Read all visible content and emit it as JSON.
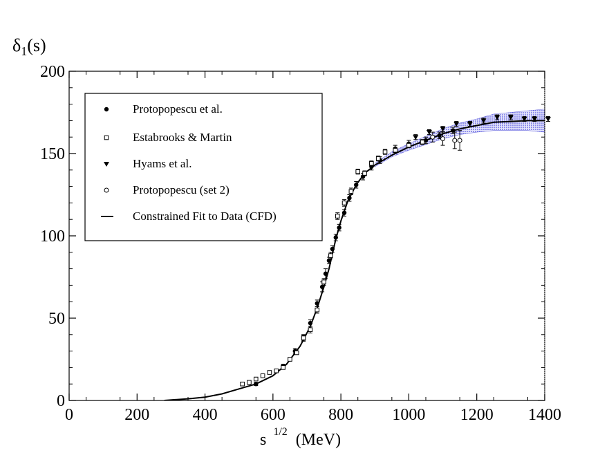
{
  "chart_data": {
    "type": "scatter",
    "ylabel": {
      "main": "δ",
      "sub": "1",
      "rest": "(s)"
    },
    "xlabel": {
      "main": "s",
      "sup": "1/2",
      "rest": "(MeV)"
    },
    "xlim": [
      0,
      1400
    ],
    "ylim": [
      0,
      200
    ],
    "x_ticks": [
      0,
      200,
      400,
      600,
      800,
      1000,
      1200,
      1400
    ],
    "y_ticks": [
      0,
      50,
      100,
      150,
      200
    ],
    "grid": false,
    "legend_position": "top-left",
    "series": [
      {
        "name": "Protopopescu et al.",
        "marker": "filled-circle",
        "points": [
          {
            "x": 550,
            "y": 10,
            "err": 1
          },
          {
            "x": 610,
            "y": 18,
            "err": 1
          },
          {
            "x": 630,
            "y": 21,
            "err": 1
          },
          {
            "x": 665,
            "y": 30,
            "err": 1.5
          },
          {
            "x": 690,
            "y": 38,
            "err": 2
          },
          {
            "x": 710,
            "y": 47,
            "err": 2
          },
          {
            "x": 730,
            "y": 59,
            "err": 2
          },
          {
            "x": 745,
            "y": 69,
            "err": 3
          },
          {
            "x": 755,
            "y": 77,
            "err": 3
          },
          {
            "x": 765,
            "y": 85,
            "err": 2
          },
          {
            "x": 775,
            "y": 92,
            "err": 2
          },
          {
            "x": 785,
            "y": 99,
            "err": 2
          },
          {
            "x": 795,
            "y": 105,
            "err": 2
          },
          {
            "x": 810,
            "y": 114,
            "err": 2
          },
          {
            "x": 825,
            "y": 123,
            "err": 2
          },
          {
            "x": 845,
            "y": 131,
            "err": 2
          },
          {
            "x": 865,
            "y": 136,
            "err": 2
          },
          {
            "x": 890,
            "y": 142,
            "err": 2
          },
          {
            "x": 915,
            "y": 146,
            "err": 2
          },
          {
            "x": 960,
            "y": 153,
            "err": 2
          },
          {
            "x": 1000,
            "y": 156,
            "err": 2
          },
          {
            "x": 1050,
            "y": 158,
            "err": 2
          },
          {
            "x": 1090,
            "y": 161,
            "err": 2
          },
          {
            "x": 1130,
            "y": 164,
            "err": 2
          }
        ]
      },
      {
        "name": "Estabrooks & Martin",
        "marker": "open-square",
        "points": [
          {
            "x": 510,
            "y": 10,
            "err": 1
          },
          {
            "x": 530,
            "y": 11,
            "err": 1
          },
          {
            "x": 550,
            "y": 13,
            "err": 1
          },
          {
            "x": 570,
            "y": 15,
            "err": 1
          },
          {
            "x": 590,
            "y": 17,
            "err": 1
          },
          {
            "x": 610,
            "y": 18,
            "err": 1
          },
          {
            "x": 630,
            "y": 20,
            "err": 1
          },
          {
            "x": 650,
            "y": 25,
            "err": 1
          },
          {
            "x": 670,
            "y": 29,
            "err": 1
          },
          {
            "x": 690,
            "y": 38,
            "err": 1.5
          },
          {
            "x": 710,
            "y": 43,
            "err": 2
          },
          {
            "x": 730,
            "y": 55,
            "err": 2
          },
          {
            "x": 750,
            "y": 72,
            "err": 2
          },
          {
            "x": 770,
            "y": 88,
            "err": 2
          },
          {
            "x": 790,
            "y": 112,
            "err": 2
          },
          {
            "x": 810,
            "y": 120,
            "err": 2
          },
          {
            "x": 830,
            "y": 127,
            "err": 2
          },
          {
            "x": 850,
            "y": 139,
            "err": 1.5
          },
          {
            "x": 870,
            "y": 138,
            "err": 1.5
          },
          {
            "x": 890,
            "y": 144,
            "err": 1.5
          },
          {
            "x": 910,
            "y": 147,
            "err": 1.5
          },
          {
            "x": 930,
            "y": 151,
            "err": 1.5
          },
          {
            "x": 960,
            "y": 152,
            "err": 1.5
          },
          {
            "x": 1000,
            "y": 155,
            "err": 1.5
          },
          {
            "x": 1040,
            "y": 157,
            "err": 1.5
          }
        ]
      },
      {
        "name": "Hyams et al.",
        "marker": "filled-triangle-down",
        "points": [
          {
            "x": 1020,
            "y": 160,
            "err": 1.5
          },
          {
            "x": 1060,
            "y": 163,
            "err": 1.5
          },
          {
            "x": 1100,
            "y": 165,
            "err": 1.5
          },
          {
            "x": 1140,
            "y": 168,
            "err": 1.5
          },
          {
            "x": 1180,
            "y": 168,
            "err": 1.5
          },
          {
            "x": 1220,
            "y": 170,
            "err": 1.5
          },
          {
            "x": 1260,
            "y": 172,
            "err": 1.5
          },
          {
            "x": 1300,
            "y": 172,
            "err": 1.5
          },
          {
            "x": 1340,
            "y": 171,
            "err": 1.5
          },
          {
            "x": 1370,
            "y": 171,
            "err": 1.5
          },
          {
            "x": 1410,
            "y": 171,
            "err": 1.5
          }
        ]
      },
      {
        "name": "Protopopescu (set 2)",
        "marker": "open-circle",
        "points": [
          {
            "x": 1070,
            "y": 160,
            "err": 3
          },
          {
            "x": 1100,
            "y": 159,
            "err": 4
          },
          {
            "x": 1135,
            "y": 158,
            "err": 5
          },
          {
            "x": 1150,
            "y": 158,
            "err": 6
          }
        ]
      },
      {
        "name": "Constrained Fit to Data (CFD)",
        "marker": "line",
        "curve": [
          {
            "x": 280,
            "y": 0
          },
          {
            "x": 350,
            "y": 1
          },
          {
            "x": 400,
            "y": 2
          },
          {
            "x": 450,
            "y": 4
          },
          {
            "x": 500,
            "y": 7
          },
          {
            "x": 550,
            "y": 10
          },
          {
            "x": 600,
            "y": 15
          },
          {
            "x": 640,
            "y": 22
          },
          {
            "x": 680,
            "y": 33
          },
          {
            "x": 710,
            "y": 45
          },
          {
            "x": 730,
            "y": 56
          },
          {
            "x": 750,
            "y": 69
          },
          {
            "x": 765,
            "y": 80
          },
          {
            "x": 775,
            "y": 89
          },
          {
            "x": 785,
            "y": 98
          },
          {
            "x": 800,
            "y": 109
          },
          {
            "x": 820,
            "y": 121
          },
          {
            "x": 845,
            "y": 131
          },
          {
            "x": 870,
            "y": 138
          },
          {
            "x": 900,
            "y": 143
          },
          {
            "x": 950,
            "y": 149
          },
          {
            "x": 1000,
            "y": 154
          },
          {
            "x": 1050,
            "y": 158
          },
          {
            "x": 1100,
            "y": 162
          },
          {
            "x": 1150,
            "y": 165
          },
          {
            "x": 1200,
            "y": 167
          },
          {
            "x": 1250,
            "y": 169
          },
          {
            "x": 1300,
            "y": 169.5
          },
          {
            "x": 1350,
            "y": 170
          },
          {
            "x": 1400,
            "y": 170
          }
        ],
        "band": [
          {
            "x": 900,
            "lo": 142,
            "hi": 144
          },
          {
            "x": 950,
            "lo": 148,
            "hi": 151
          },
          {
            "x": 1000,
            "lo": 152,
            "hi": 156
          },
          {
            "x": 1050,
            "lo": 155.5,
            "hi": 160.5
          },
          {
            "x": 1100,
            "lo": 159,
            "hi": 165
          },
          {
            "x": 1150,
            "lo": 161.5,
            "hi": 168.5
          },
          {
            "x": 1200,
            "lo": 163,
            "hi": 171
          },
          {
            "x": 1250,
            "lo": 164,
            "hi": 174
          },
          {
            "x": 1300,
            "lo": 164,
            "hi": 175
          },
          {
            "x": 1350,
            "lo": 164,
            "hi": 176
          },
          {
            "x": 1400,
            "lo": 163,
            "hi": 177
          }
        ]
      }
    ]
  }
}
